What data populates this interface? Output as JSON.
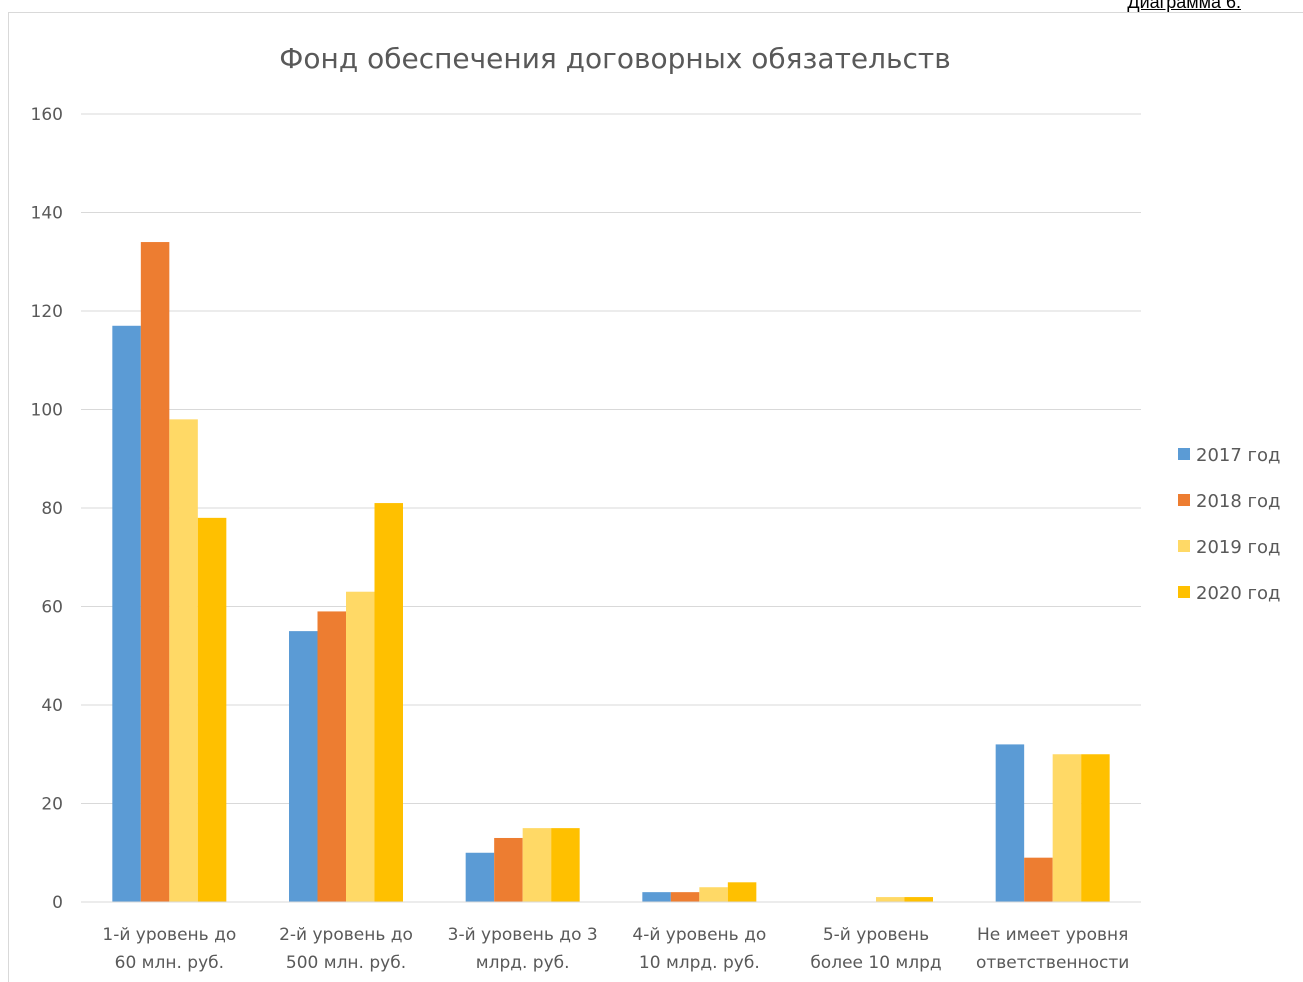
{
  "caption": "Диаграмма 6.",
  "chart_data": {
    "type": "bar",
    "title": "Фонд обеспечения договорных обязательств",
    "xlabel": "",
    "ylabel": "",
    "ylim": [
      0,
      160
    ],
    "yticks": [
      0,
      20,
      40,
      60,
      80,
      100,
      120,
      140,
      160
    ],
    "grid": true,
    "legend_position": "right",
    "categories": [
      [
        "1-й уровень до",
        "60 млн. руб."
      ],
      [
        "2-й уровень до",
        "500 млн. руб."
      ],
      [
        "3-й уровень до 3",
        "млрд. руб."
      ],
      [
        "4-й уровень до",
        "10 млрд. руб."
      ],
      [
        "5-й уровень",
        "более 10 млрд"
      ],
      [
        "Не имеет уровня",
        "ответственности"
      ]
    ],
    "series": [
      {
        "name": "2017 год",
        "color": "#5b9bd5",
        "values": [
          117,
          55,
          10,
          2,
          0,
          32
        ]
      },
      {
        "name": "2018 год",
        "color": "#ed7d31",
        "values": [
          134,
          59,
          13,
          2,
          0,
          9
        ]
      },
      {
        "name": "2019 год",
        "color": "#ffd966",
        "values": [
          98,
          63,
          15,
          3,
          1,
          30
        ]
      },
      {
        "name": "2020 год",
        "color": "#ffc000",
        "values": [
          78,
          81,
          15,
          4,
          1,
          30
        ]
      }
    ]
  }
}
